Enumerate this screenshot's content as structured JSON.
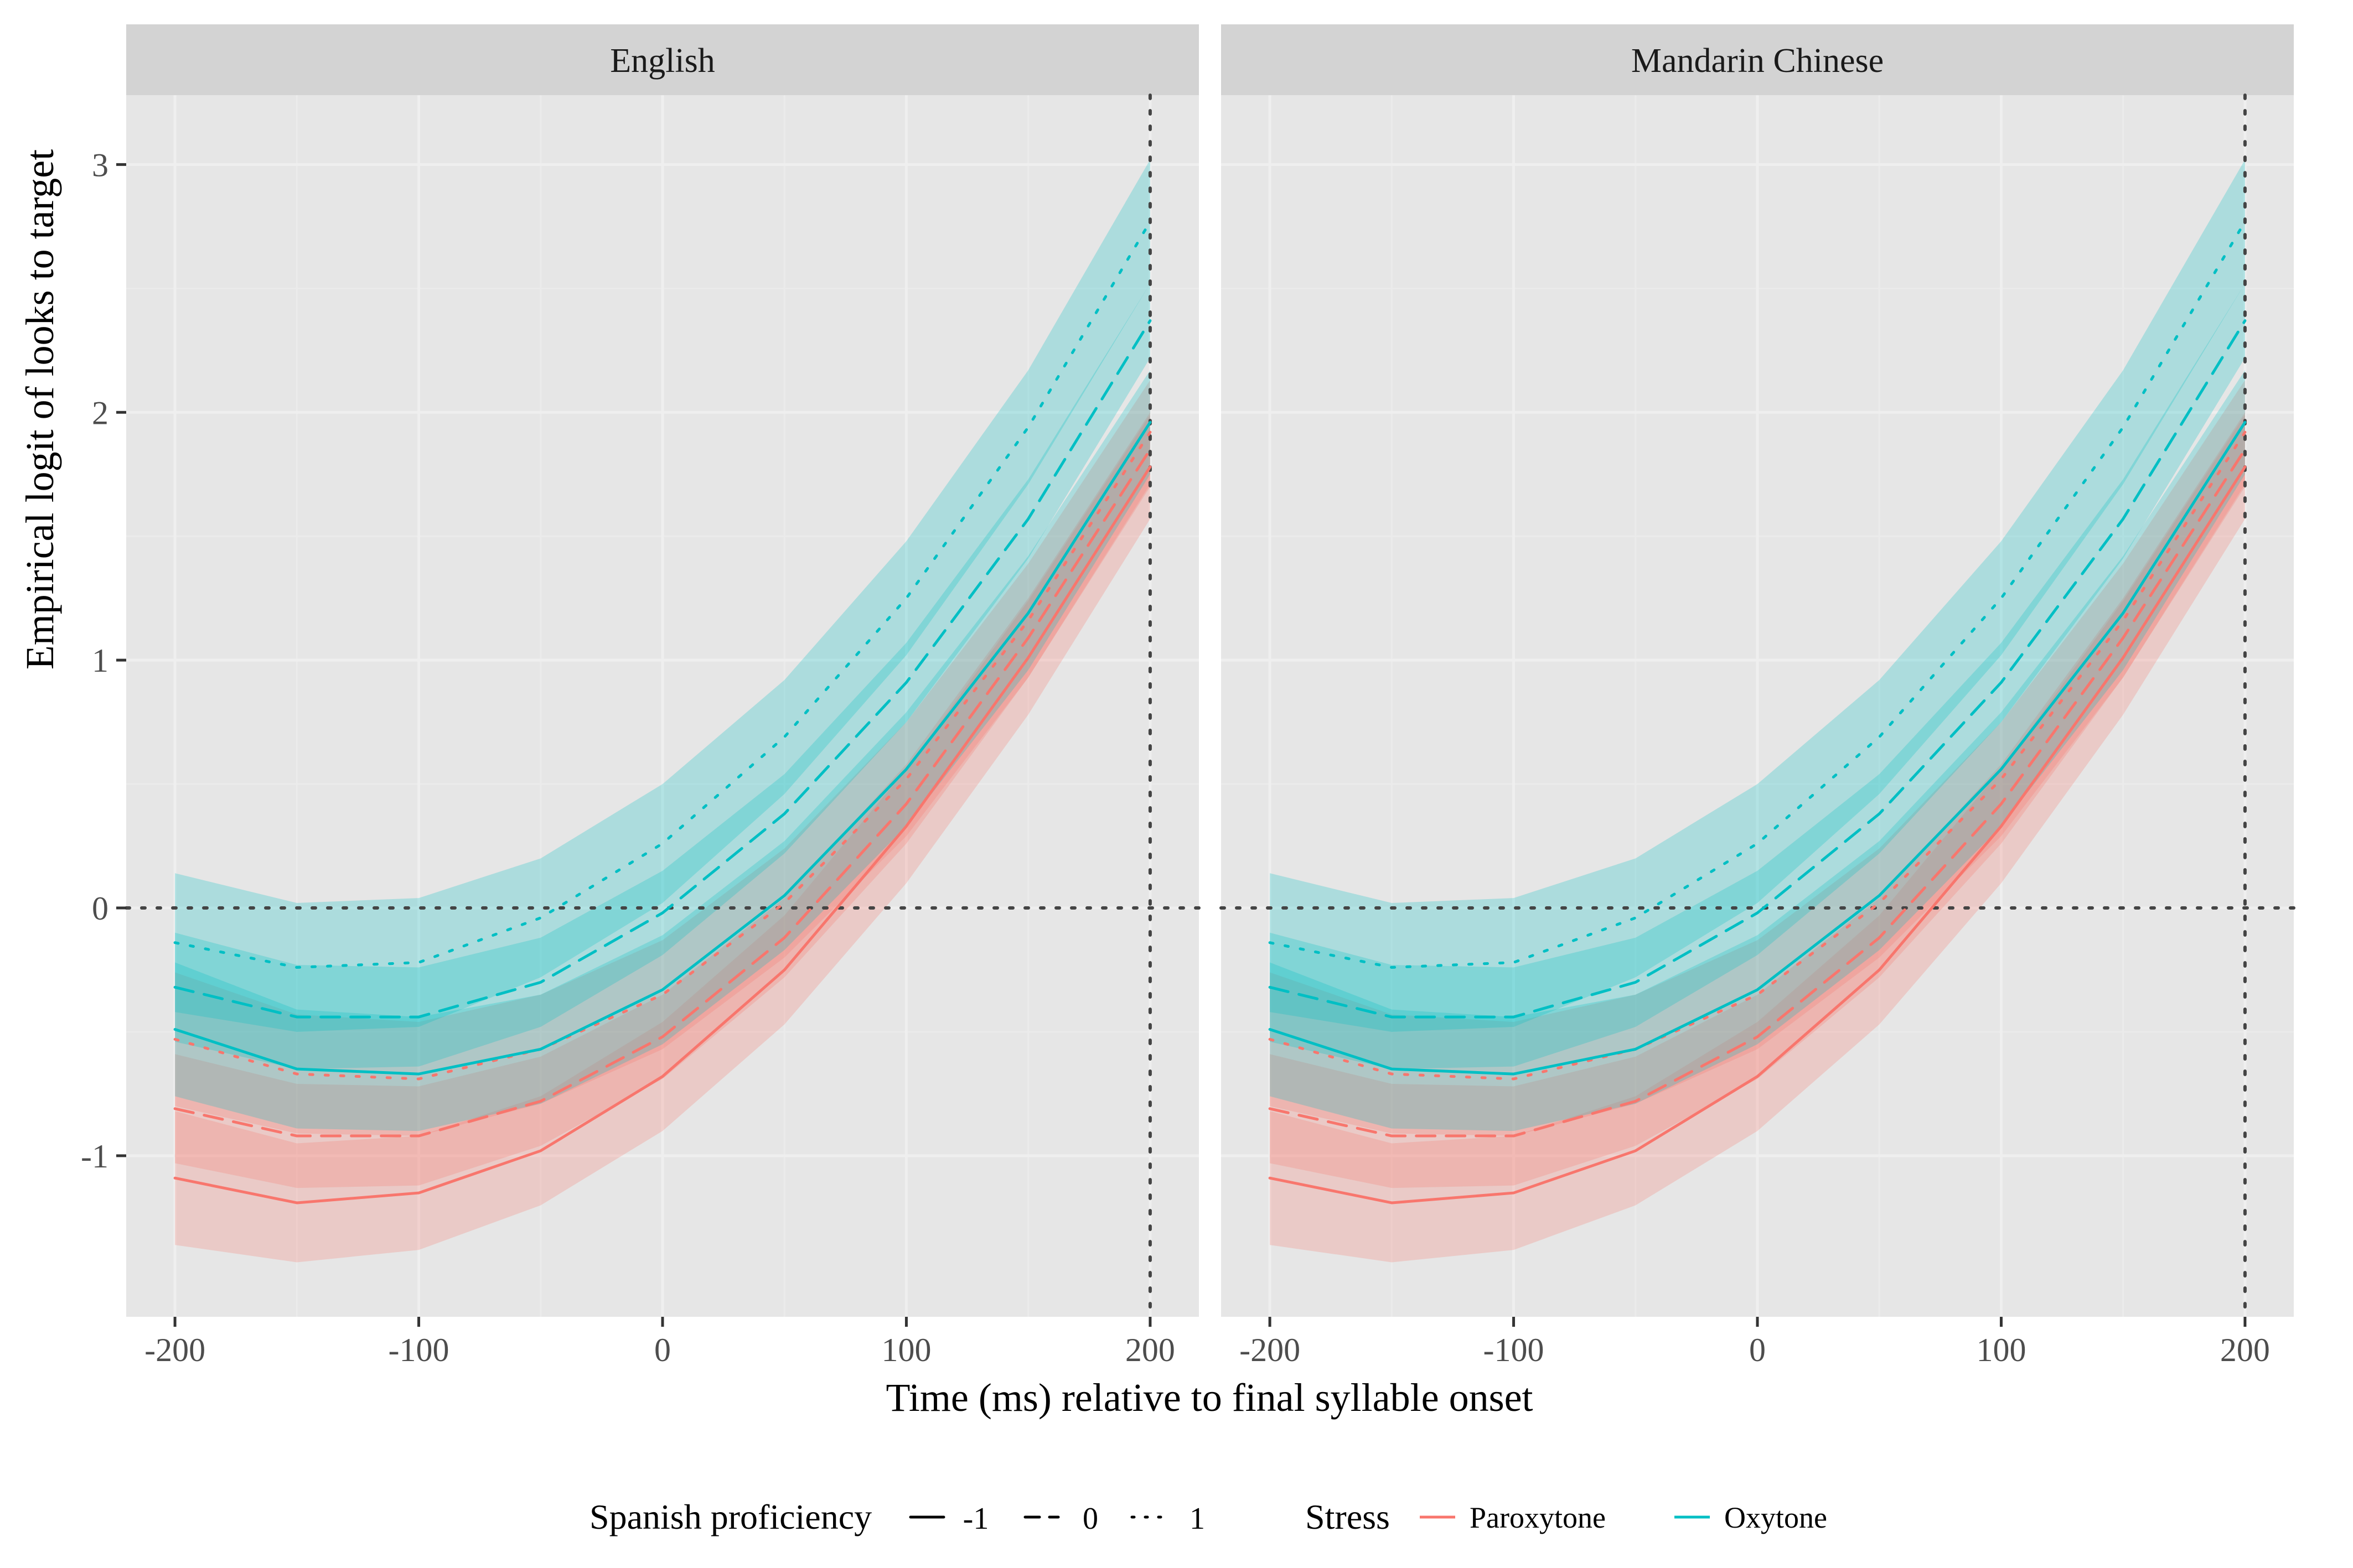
{
  "chart_data": {
    "type": "line",
    "xlabel": "Time (ms) relative to final syllable onset",
    "ylabel": "Empirical logit of looks to target",
    "xlim": [
      -220,
      220
    ],
    "ylim": [
      -1.65,
      3.28
    ],
    "x_ticks": [
      -200,
      -100,
      0,
      100,
      200
    ],
    "x_tick_labels": [
      "-200",
      "-100",
      "0",
      "100",
      "200"
    ],
    "y_ticks": [
      -1,
      0,
      1,
      2,
      3
    ],
    "y_tick_labels": [
      "-1",
      "0",
      "1",
      "2",
      "3"
    ],
    "grid": true,
    "reference_lines": {
      "hline": 0,
      "vline": 200
    },
    "x": [
      -200,
      -150,
      -100,
      -50,
      0,
      50,
      100,
      150,
      200
    ],
    "panels": [
      {
        "title": "English"
      },
      {
        "title": "Mandarin Chinese"
      }
    ],
    "series": [
      {
        "stress": "Paroxytone",
        "proficiency": "-1",
        "values": [
          -1.09,
          -1.19,
          -1.15,
          -0.98,
          -0.68,
          -0.25,
          0.33,
          1.01,
          1.78
        ],
        "lower": [
          -1.36,
          -1.43,
          -1.38,
          -1.2,
          -0.9,
          -0.47,
          0.1,
          0.78,
          1.57
        ],
        "upper": [
          -0.82,
          -0.95,
          -0.92,
          -0.76,
          -0.46,
          -0.03,
          0.56,
          1.24,
          1.99
        ]
      },
      {
        "stress": "Paroxytone",
        "proficiency": "0",
        "values": [
          -0.81,
          -0.92,
          -0.92,
          -0.78,
          -0.52,
          -0.12,
          0.42,
          1.09,
          1.85
        ],
        "lower": [
          -1.03,
          -1.13,
          -1.12,
          -0.96,
          -0.69,
          -0.28,
          0.26,
          0.93,
          1.7
        ],
        "upper": [
          -0.59,
          -0.71,
          -0.72,
          -0.6,
          -0.35,
          0.04,
          0.58,
          1.25,
          2.0
        ]
      },
      {
        "stress": "Paroxytone",
        "proficiency": "1",
        "values": [
          -0.53,
          -0.67,
          -0.69,
          -0.57,
          -0.35,
          0.02,
          0.52,
          1.16,
          1.92
        ],
        "lower": [
          -0.8,
          -0.91,
          -0.92,
          -0.79,
          -0.57,
          -0.2,
          0.29,
          0.93,
          1.71
        ],
        "upper": [
          -0.26,
          -0.43,
          -0.46,
          -0.35,
          -0.13,
          0.24,
          0.75,
          1.39,
          2.13
        ]
      },
      {
        "stress": "Oxytone",
        "proficiency": "-1",
        "values": [
          -0.49,
          -0.65,
          -0.67,
          -0.57,
          -0.33,
          0.05,
          0.56,
          1.19,
          1.96
        ],
        "lower": [
          -0.76,
          -0.89,
          -0.9,
          -0.79,
          -0.55,
          -0.17,
          0.33,
          0.96,
          1.75
        ],
        "upper": [
          -0.22,
          -0.41,
          -0.44,
          -0.35,
          -0.11,
          0.27,
          0.79,
          1.42,
          2.17
        ]
      },
      {
        "stress": "Oxytone",
        "proficiency": "0",
        "values": [
          -0.32,
          -0.44,
          -0.44,
          -0.3,
          -0.02,
          0.38,
          0.91,
          1.57,
          2.37
        ],
        "lower": [
          -0.54,
          -0.65,
          -0.64,
          -0.48,
          -0.19,
          0.22,
          0.75,
          1.41,
          2.22
        ],
        "upper": [
          -0.1,
          -0.23,
          -0.24,
          -0.12,
          0.15,
          0.54,
          1.07,
          1.73,
          2.52
        ]
      },
      {
        "stress": "Oxytone",
        "proficiency": "1",
        "values": [
          -0.14,
          -0.24,
          -0.22,
          -0.04,
          0.26,
          0.69,
          1.25,
          1.94,
          2.77
        ],
        "lower": [
          -0.42,
          -0.5,
          -0.48,
          -0.28,
          0.02,
          0.46,
          1.02,
          1.71,
          2.52
        ],
        "upper": [
          0.14,
          0.02,
          0.04,
          0.2,
          0.5,
          0.92,
          1.48,
          2.17,
          3.02
        ]
      }
    ],
    "legend": {
      "placement": "bottom",
      "groups": [
        {
          "title": "Spanish proficiency",
          "items": [
            {
              "label": "-1",
              "linetype": "solid"
            },
            {
              "label": "0",
              "linetype": "dashed"
            },
            {
              "label": "1",
              "linetype": "dotted"
            }
          ]
        },
        {
          "title": "Stress",
          "items": [
            {
              "label": "Paroxytone",
              "color": "#F8766D"
            },
            {
              "label": "Oxytone",
              "color": "#00BFC4"
            }
          ]
        }
      ]
    },
    "colors": {
      "Paroxytone": "#F8766D",
      "Oxytone": "#00BFC4",
      "panel_bg": "#E6E6E6",
      "strip_bg": "#D3D3D3",
      "grid": "#EFEFEF",
      "reference": "#444444"
    }
  }
}
